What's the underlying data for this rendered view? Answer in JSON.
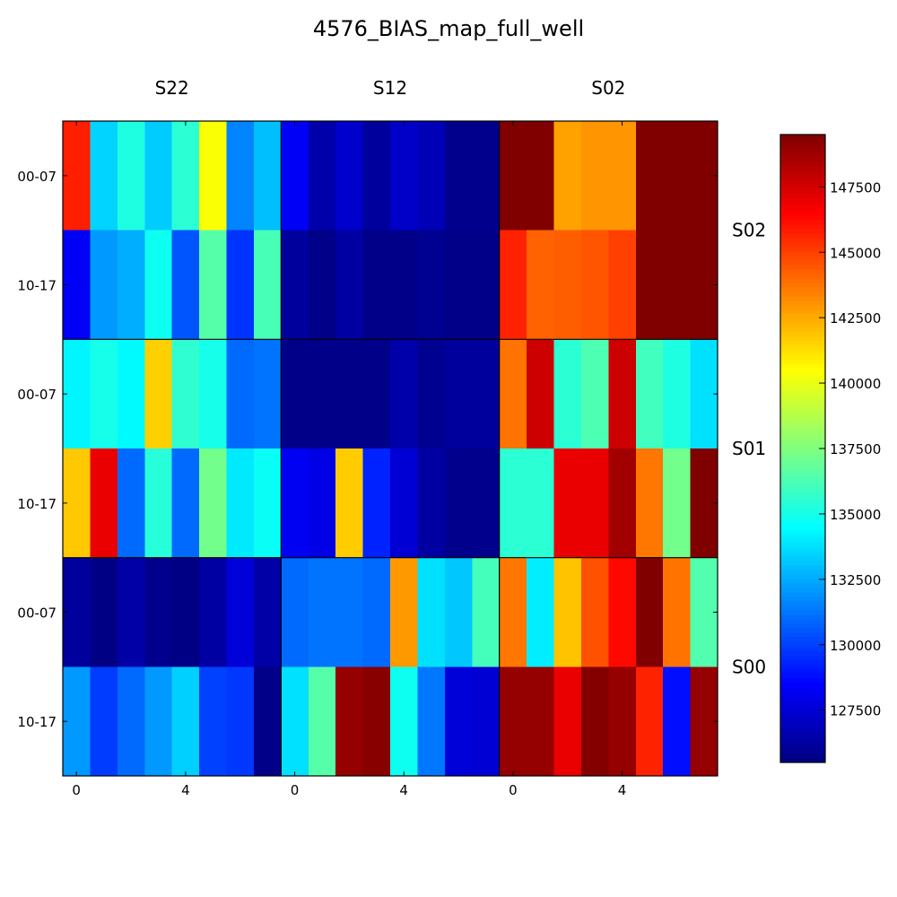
{
  "chart_data": {
    "type": "heatmap",
    "title": "4576_BIAS_map_full_well",
    "colormap": "jet",
    "value_range": [
      125500,
      149500
    ],
    "column_groups": [
      "S22",
      "S12",
      "S02"
    ],
    "row_groups": [
      "S02",
      "S01",
      "S00"
    ],
    "row_labels": [
      "00-07",
      "10-17",
      "00-07",
      "10-17",
      "00-07",
      "10-17"
    ],
    "x_tick_labels": [
      "0",
      "4"
    ],
    "colorbar_ticks": [
      127500,
      130000,
      132500,
      135000,
      137500,
      140000,
      142500,
      145000,
      147500
    ],
    "rows": [
      [
        145800,
        133500,
        135200,
        133300,
        135500,
        140400,
        131600,
        133000,
        128300,
        126500,
        127300,
        126200,
        127200,
        126800,
        125800,
        125800,
        149500,
        149500,
        142700,
        143000,
        143000,
        149500,
        149500,
        149500
      ],
      [
        128300,
        132100,
        132600,
        134800,
        130500,
        136500,
        129700,
        136200,
        126200,
        125700,
        126300,
        125700,
        125700,
        125900,
        125700,
        125700,
        145700,
        144200,
        144300,
        144500,
        145000,
        149500,
        149500,
        149500
      ],
      [
        134300,
        135000,
        134400,
        141600,
        135600,
        135000,
        131000,
        131200,
        125700,
        125700,
        125700,
        125700,
        126500,
        125900,
        126200,
        126200,
        143800,
        147700,
        135500,
        136300,
        147700,
        136000,
        135200,
        133800
      ],
      [
        141800,
        147000,
        131000,
        135400,
        131000,
        137200,
        134000,
        134700,
        128200,
        127900,
        141700,
        129300,
        127500,
        126300,
        125800,
        125800,
        135500,
        135500,
        147000,
        147000,
        148700,
        143700,
        137200,
        149500
      ],
      [
        126200,
        125600,
        126400,
        125800,
        125600,
        126300,
        127600,
        126400,
        131000,
        131200,
        131200,
        131000,
        142900,
        133800,
        133200,
        136100,
        143700,
        134100,
        141900,
        144600,
        146300,
        149500,
        143800,
        136400
      ],
      [
        132100,
        129900,
        131000,
        132100,
        133400,
        130000,
        129800,
        125700,
        133800,
        136500,
        149000,
        149300,
        134800,
        131300,
        127600,
        127500,
        149000,
        149000,
        147000,
        149400,
        149000,
        145700,
        128800,
        149000
      ]
    ]
  }
}
